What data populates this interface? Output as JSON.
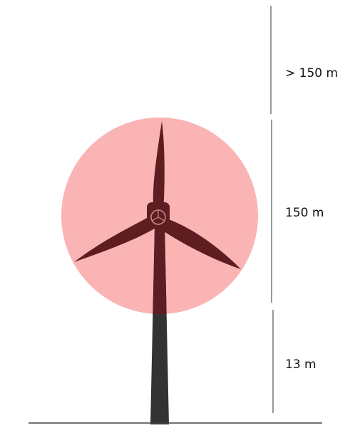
{
  "height_labels": [
    "> 150 m",
    "150 m",
    "13 m"
  ]
}
